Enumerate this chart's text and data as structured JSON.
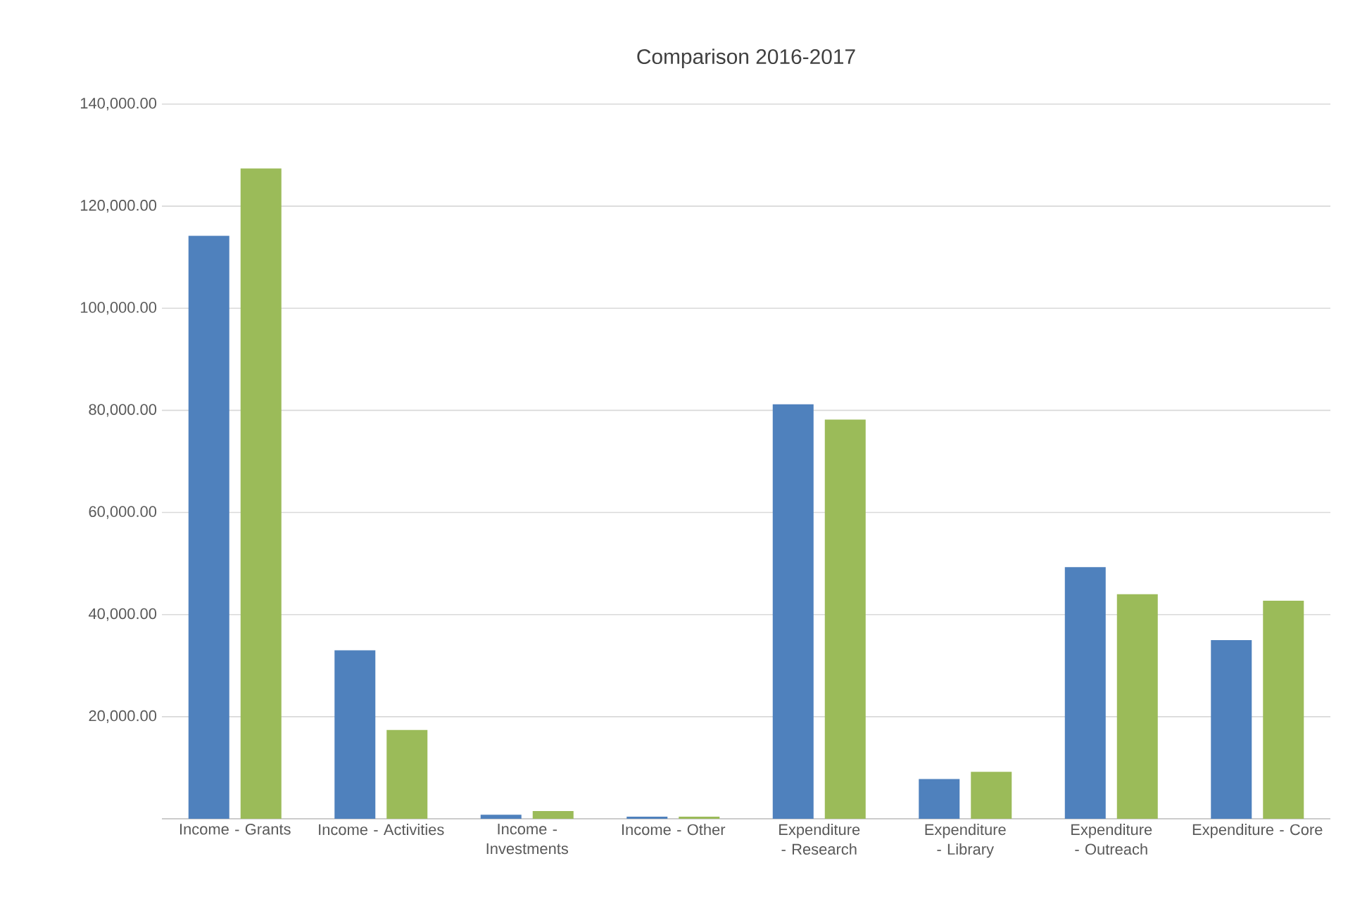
{
  "chart_data": {
    "type": "bar",
    "title": "Comparison 2016-2017",
    "categories": [
      "Income - Grants",
      "Income - Activities",
      "Income - Investments",
      "Income - Other",
      "Expenditure - Research",
      "Expenditure - Library",
      "Expenditure - Outreach",
      "Expenditure - Core"
    ],
    "series": [
      {
        "color": "#4f81bd",
        "values": [
          114200,
          33000,
          800,
          400,
          81200,
          7800,
          49300,
          35000
        ]
      },
      {
        "color": "#9bbb59",
        "values": [
          127400,
          17400,
          1500,
          400,
          78200,
          9200,
          44000,
          42700
        ]
      }
    ],
    "ylim": [
      0,
      140000
    ],
    "yticks": [
      {
        "value": 0,
        "label": null
      },
      {
        "value": 20000,
        "label": "20,000.00"
      },
      {
        "value": 40000,
        "label": "40,000.00"
      },
      {
        "value": 60000,
        "label": "60,000.00"
      },
      {
        "value": 80000,
        "label": "80,000.00"
      },
      {
        "value": 100000,
        "label": "100,000.00"
      },
      {
        "value": 120000,
        "label": "120,000.00"
      },
      {
        "value": 140000,
        "label": "140,000.00"
      }
    ],
    "grid": "y"
  }
}
